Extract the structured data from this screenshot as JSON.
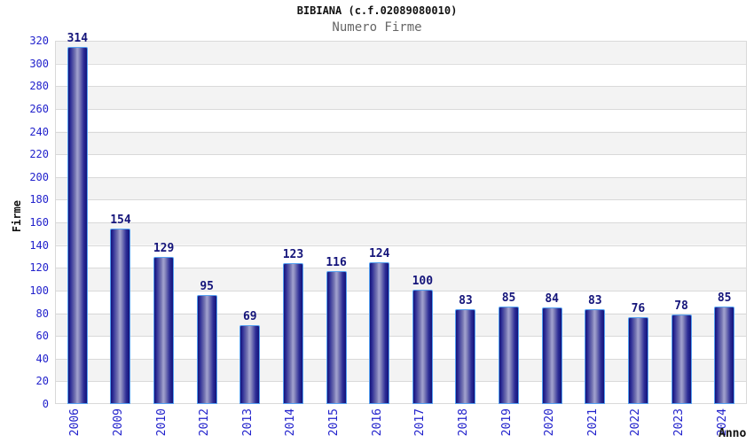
{
  "chart_data": {
    "type": "bar",
    "title": "BIBIANA (c.f.02089080010)",
    "subtitle": "Numero Firme",
    "xlabel": "Anno",
    "ylabel": "Firme",
    "categories": [
      "2006",
      "2009",
      "2010",
      "2012",
      "2013",
      "2014",
      "2015",
      "2016",
      "2017",
      "2018",
      "2019",
      "2020",
      "2021",
      "2022",
      "2023",
      "2024"
    ],
    "values": [
      314,
      154,
      129,
      95,
      69,
      123,
      116,
      124,
      100,
      83,
      85,
      84,
      83,
      76,
      78,
      85
    ],
    "ylim": [
      0,
      320
    ],
    "ytick_step": 20,
    "legend": "none",
    "grid": "horizontal-bands",
    "colors": {
      "tick_label": "#2222cc",
      "value_label": "#14147a",
      "bar_dark": "#12127a",
      "bar_mid": "#2e2e96",
      "bar_light": "#a2a2cf",
      "bar_border": "#55a0f0",
      "band": "#f3f3f3",
      "gridline": "#d9d9d9",
      "title": "#111111",
      "subtitle": "#666666"
    }
  }
}
